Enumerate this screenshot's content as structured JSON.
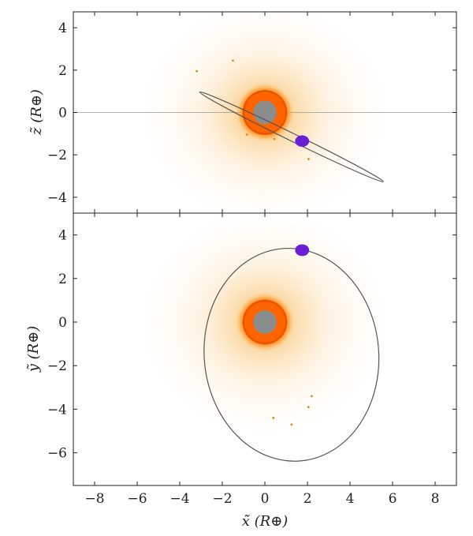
{
  "chart_data": [
    {
      "type": "scatter",
      "panel": "top",
      "title": "",
      "xlabel": "",
      "ylabel": "z̃ (R⊕)",
      "xlim": [
        -9,
        9
      ],
      "ylim": [
        -4.75,
        4.75
      ],
      "yticks": [
        4,
        2,
        0,
        -2,
        -4
      ],
      "ytick_labels": [
        "4",
        "2",
        "0",
        "−2",
        "−4"
      ],
      "grid": false,
      "reference_line_y": 0,
      "central_body": {
        "x": 0,
        "y": 0,
        "color": "#8c8c8c"
      },
      "orbit": {
        "cx": 1.25,
        "cy": -1.15,
        "semi_major": 4.8,
        "semi_minor": 0.18,
        "angle_deg": -26
      },
      "satellite": {
        "x": 1.75,
        "y": -1.35,
        "color": "#6a1fd6"
      },
      "debris_points": [
        {
          "x": 2.05,
          "y": -2.2
        },
        {
          "x": 0.45,
          "y": -1.25
        },
        {
          "x": -0.85,
          "y": -1.05
        },
        {
          "x": -3.2,
          "y": 1.95
        },
        {
          "x": -1.5,
          "y": 2.45
        }
      ],
      "colors": {
        "glow": "#ff8a00",
        "halo": "#f5a623",
        "orbit": "#555555"
      }
    },
    {
      "type": "scatter",
      "panel": "bottom",
      "title": "",
      "xlabel": "x̃ (R⊕)",
      "ylabel": "ỹ (R⊕)",
      "xlim": [
        -9,
        9
      ],
      "ylim": [
        -7.5,
        5
      ],
      "xticks": [
        -8,
        -6,
        -4,
        -2,
        0,
        2,
        4,
        6,
        8
      ],
      "xtick_labels": [
        "−8",
        "−6",
        "−4",
        "−2",
        "0",
        "2",
        "4",
        "6",
        "8"
      ],
      "yticks": [
        4,
        2,
        0,
        -2,
        -4,
        -6
      ],
      "ytick_labels": [
        "4",
        "2",
        "0",
        "−2",
        "−4",
        "−6"
      ],
      "grid": false,
      "central_body": {
        "x": 0,
        "y": 0,
        "color": "#8c8c8c"
      },
      "orbit": {
        "cx": 1.25,
        "cy": -1.5,
        "semi_major": 5.0,
        "semi_minor": 4.1,
        "angle_deg": 95
      },
      "satellite": {
        "x": 1.75,
        "y": 3.3,
        "color": "#6a1fd6"
      },
      "debris_points": [
        {
          "x": 2.05,
          "y": -3.9
        },
        {
          "x": 0.4,
          "y": -4.4
        },
        {
          "x": 1.25,
          "y": -4.7
        },
        {
          "x": 2.2,
          "y": -3.4
        }
      ],
      "colors": {
        "glow": "#ff8a00",
        "halo": "#f5a623",
        "orbit": "#555555"
      }
    }
  ]
}
